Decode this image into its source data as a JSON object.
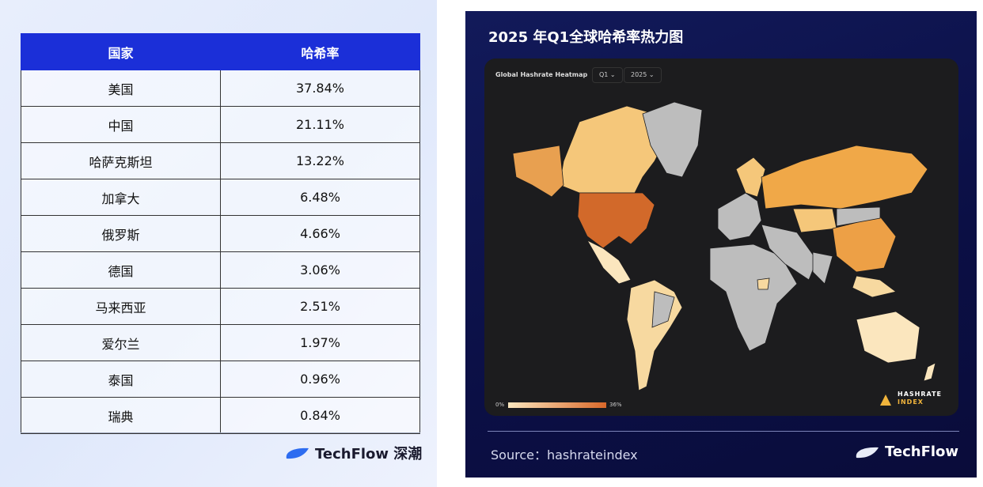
{
  "table": {
    "header": [
      "国家",
      "哈希率"
    ],
    "rows": [
      [
        "美国",
        "37.84%"
      ],
      [
        "中国",
        "21.11%"
      ],
      [
        "哈萨克斯坦",
        "13.22%"
      ],
      [
        "加拿大",
        "6.48%"
      ],
      [
        "俄罗斯",
        "4.66%"
      ],
      [
        "德国",
        "3.06%"
      ],
      [
        "马来西亚",
        "2.51%"
      ],
      [
        "爱尔兰",
        "1.97%"
      ],
      [
        "泰国",
        "0.96%"
      ],
      [
        "瑞典",
        "0.84%"
      ]
    ]
  },
  "left_brand": "TechFlow 深潮",
  "map_panel": {
    "title": "2025 年Q1全球哈希率热力图",
    "widget_title": "Global Hashrate Heatmap",
    "quarter_filter": "Q1",
    "year_filter": "2025",
    "legend_min": "0%",
    "legend_max": "36%",
    "watermark": [
      "HASHRATE",
      "INDEX"
    ],
    "source": "Source：hashrateindex",
    "brand": "TechFlow"
  }
}
